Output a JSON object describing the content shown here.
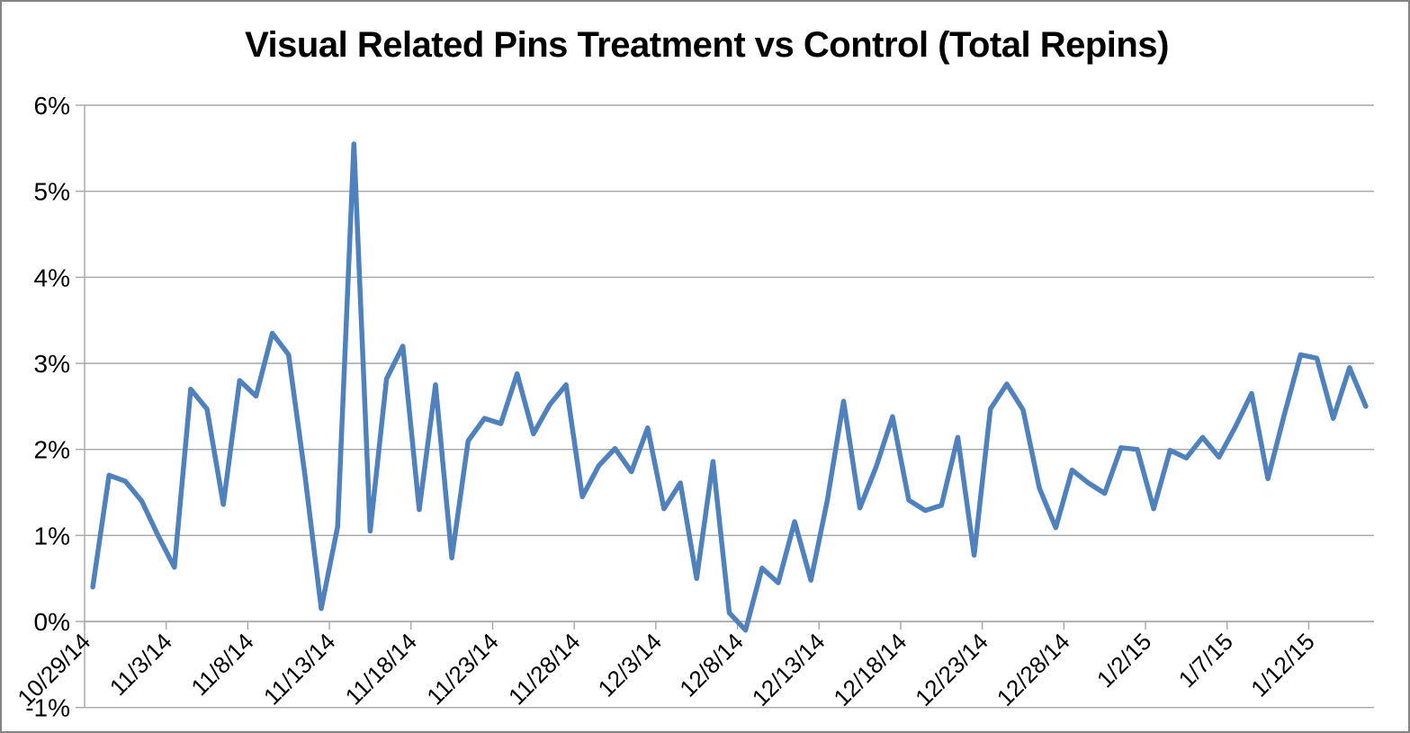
{
  "chart_data": {
    "type": "line",
    "title": "Visual Related Pins Treatment vs Control (Total Repins)",
    "xlabel": "",
    "ylabel": "",
    "ylim": [
      -1,
      6
    ],
    "y_unit": "%",
    "grid": true,
    "legend": "none",
    "series_name": "Treatment vs Control (Total Repins)",
    "series_color": "#4F81BD",
    "grid_color": "#A6A6A6",
    "text_color": "#000000",
    "y_tick_labels": [
      "6%",
      "5%",
      "4%",
      "3%",
      "2%",
      "1%",
      "0%",
      "-1%"
    ],
    "x_tick_labels": [
      "10/29/14",
      "11/3/14",
      "11/8/14",
      "11/13/14",
      "11/18/14",
      "11/23/14",
      "11/28/14",
      "12/3/14",
      "12/8/14",
      "12/13/14",
      "12/18/14",
      "12/23/14",
      "12/28/14",
      "1/2/15",
      "1/7/15",
      "1/12/15"
    ],
    "categories": [
      "10/29/14",
      "10/30/14",
      "10/31/14",
      "11/1/14",
      "11/2/14",
      "11/3/14",
      "11/4/14",
      "11/5/14",
      "11/6/14",
      "11/7/14",
      "11/8/14",
      "11/9/14",
      "11/10/14",
      "11/11/14",
      "11/12/14",
      "11/13/14",
      "11/14/14",
      "11/15/14",
      "11/16/14",
      "11/17/14",
      "11/18/14",
      "11/19/14",
      "11/20/14",
      "11/21/14",
      "11/22/14",
      "11/23/14",
      "11/24/14",
      "11/25/14",
      "11/26/14",
      "11/27/14",
      "11/28/14",
      "11/29/14",
      "11/30/14",
      "12/1/14",
      "12/2/14",
      "12/3/14",
      "12/4/14",
      "12/5/14",
      "12/6/14",
      "12/7/14",
      "12/8/14",
      "12/9/14",
      "12/10/14",
      "12/11/14",
      "12/12/14",
      "12/13/14",
      "12/14/14",
      "12/15/14",
      "12/16/14",
      "12/17/14",
      "12/18/14",
      "12/19/14",
      "12/20/14",
      "12/21/14",
      "12/22/14",
      "12/23/14",
      "12/24/14",
      "12/25/14",
      "12/26/14",
      "12/27/14",
      "12/28/14",
      "12/29/14",
      "12/30/14",
      "12/31/14",
      "1/1/15",
      "1/2/15",
      "1/3/15",
      "1/4/15",
      "1/5/15",
      "1/6/15",
      "1/7/15",
      "1/8/15",
      "1/9/15",
      "1/10/15",
      "1/11/15",
      "1/12/15",
      "1/13/15",
      "1/14/15",
      "1/15/15"
    ],
    "values": [
      0.4,
      1.7,
      1.63,
      1.4,
      1.0,
      0.63,
      2.7,
      2.47,
      1.36,
      2.8,
      2.62,
      3.35,
      3.1,
      1.7,
      0.15,
      1.1,
      5.55,
      1.05,
      2.82,
      3.2,
      1.3,
      2.75,
      0.74,
      2.1,
      2.36,
      2.3,
      2.88,
      2.18,
      2.52,
      2.75,
      1.45,
      1.81,
      2.01,
      1.74,
      2.25,
      1.31,
      1.61,
      0.5,
      1.86,
      0.1,
      -0.1,
      0.62,
      0.45,
      1.16,
      0.48,
      1.4,
      2.56,
      1.32,
      1.8,
      2.38,
      1.41,
      1.29,
      1.35,
      2.14,
      0.77,
      2.47,
      2.76,
      2.46,
      1.55,
      1.09,
      1.76,
      1.61,
      1.49,
      2.02,
      2.0,
      1.31,
      1.99,
      1.9,
      2.14,
      1.91,
      2.26,
      2.65,
      1.66,
      2.4,
      3.1,
      3.06,
      2.36,
      2.95,
      2.5
    ]
  }
}
